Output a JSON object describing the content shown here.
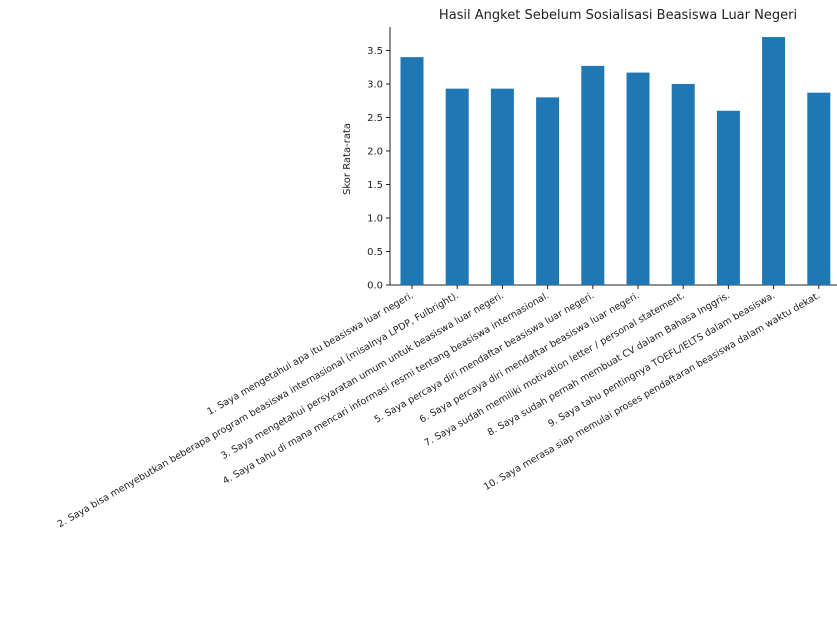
{
  "chart_data": {
    "type": "bar",
    "title": "Hasil Angket Sebelum Sosialisasi Beasiswa Luar Negeri",
    "xlabel": "",
    "ylabel": "Skor Rata-rata",
    "ylim": [
      0,
      3.85
    ],
    "yticks": [
      "0.0",
      "0.5",
      "1.0",
      "1.5",
      "2.0",
      "2.5",
      "3.0",
      "3.5"
    ],
    "grid": false,
    "bar_color": "#1f77b4",
    "categories": [
      "1. Saya mengetahui apa itu beasiswa luar negeri.",
      "2. Saya bisa menyebutkan beberapa program beasiswa internasional (misalnya LPDP, Fulbright).",
      "3. Saya mengetahui persyaratan umum untuk beasiswa luar negeri.",
      "4. Saya tahu di mana mencari informasi resmi tentang beasiswa internasional.",
      "5. Saya percaya diri mendaftar beasiswa luar negeri.",
      "6. Saya percaya diri mendaftar beasiswa luar negeri.",
      "7. Saya sudah memiliki motivation letter / personal statement.",
      "8. Saya sudah pernah membuat CV dalam Bahasa Inggris.",
      "9. Saya tahu pentingnya TOEFL/IELTS dalam beasiswa.",
      "10. Saya merasa siap memulai proses pendaftaran beasiswa dalam waktu dekat."
    ],
    "values": [
      3.4,
      2.93,
      2.93,
      2.8,
      3.27,
      3.17,
      3.0,
      2.6,
      3.7,
      2.87
    ]
  }
}
